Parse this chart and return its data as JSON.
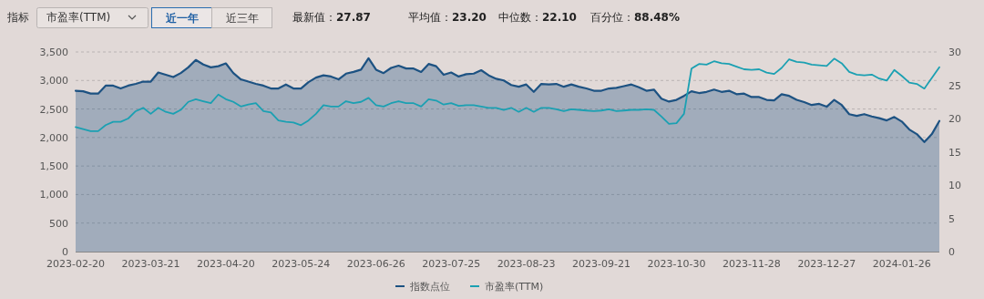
{
  "chart_data": [
    {
      "type": "other",
      "annotations": [
        "指标",
        "市盈率(TTM)",
        "近一年",
        "近三年",
        "最新值：",
        "27.87",
        "平均值：",
        "23.20",
        "中位数：",
        "22.10",
        "百分位：",
        "88.48%"
      ]
    },
    {
      "type": "area",
      "legend": "bottom",
      "grid": "y",
      "categories": [
        "2023-02-20",
        null,
        null,
        null,
        null,
        null,
        null,
        null,
        null,
        null,
        "2023-03-21",
        null,
        null,
        null,
        null,
        null,
        null,
        null,
        null,
        null,
        "2023-04-20",
        null,
        null,
        null,
        null,
        null,
        null,
        null,
        null,
        null,
        "2023-05-24",
        null,
        null,
        null,
        null,
        null,
        null,
        null,
        null,
        null,
        "2023-06-26",
        null,
        null,
        null,
        null,
        null,
        null,
        null,
        null,
        null,
        "2023-07-25",
        null,
        null,
        null,
        null,
        null,
        null,
        null,
        null,
        null,
        "2023-08-23",
        null,
        null,
        null,
        null,
        null,
        null,
        null,
        null,
        null,
        "2023-09-21",
        null,
        null,
        null,
        null,
        null,
        null,
        null,
        null,
        null,
        "2023-10-30",
        null,
        null,
        null,
        null,
        null,
        null,
        null,
        null,
        null,
        "2023-11-28",
        null,
        null,
        null,
        null,
        null,
        null,
        null,
        null,
        null,
        "2023-12-27",
        null,
        null,
        null,
        null,
        null,
        null,
        null,
        null,
        null,
        "2024-01-26",
        null,
        null,
        null,
        null,
        null
      ],
      "ylim": [
        0,
        3500
      ],
      "yticks": [
        0,
        500,
        {
          "value": 1000,
          "label": "1,000"
        },
        {
          "value": 1500,
          "label": "1,500"
        },
        {
          "value": 2000,
          "label": "2,000"
        },
        {
          "value": 2500,
          "label": "2,500"
        },
        {
          "value": 3000,
          "label": "3,000"
        },
        {
          "value": 3500,
          "label": "3,500"
        }
      ],
      "y2lim": [
        0,
        30
      ],
      "y2ticks": [
        0,
        5,
        10,
        15,
        20,
        25,
        30
      ],
      "series": [
        {
          "name": "指数点位",
          "type": "area",
          "color": "#1d5282",
          "values": [
            2820,
            2810,
            2770,
            2770,
            2910,
            2910,
            2860,
            2910,
            2940,
            2980,
            2980,
            3140,
            3100,
            3060,
            3130,
            3230,
            3360,
            3280,
            3230,
            3250,
            3300,
            3130,
            3020,
            2980,
            2940,
            2910,
            2860,
            2860,
            2930,
            2860,
            2860,
            2970,
            3050,
            3090,
            3070,
            3020,
            3120,
            3150,
            3190,
            3390,
            3190,
            3130,
            3220,
            3260,
            3210,
            3210,
            3150,
            3290,
            3250,
            3100,
            3140,
            3070,
            3110,
            3120,
            3180,
            3090,
            3030,
            3000,
            2920,
            2890,
            2930,
            2800,
            2940,
            2930,
            2940,
            2890,
            2930,
            2890,
            2860,
            2820,
            2820,
            2860,
            2870,
            2900,
            2930,
            2880,
            2820,
            2840,
            2680,
            2630,
            2660,
            2730,
            2810,
            2780,
            2800,
            2840,
            2800,
            2820,
            2760,
            2770,
            2710,
            2710,
            2660,
            2650,
            2760,
            2730,
            2660,
            2620,
            2570,
            2590,
            2540,
            2660,
            2570,
            2410,
            2380,
            2410,
            2370,
            2340,
            2300,
            2360,
            2280,
            2140,
            2060,
            1920,
            2060,
            2290
          ]
        },
        {
          "name": "市盈率(TTM)",
          "type": "line",
          "axis": "y2",
          "color": "#1ba0b2",
          "values": [
            18.7,
            18.4,
            18.1,
            18.1,
            19.0,
            19.5,
            19.5,
            20.0,
            21.1,
            21.6,
            20.7,
            21.6,
            21.0,
            20.7,
            21.3,
            22.5,
            22.9,
            22.6,
            22.3,
            23.6,
            22.9,
            22.5,
            21.8,
            22.1,
            22.3,
            21.1,
            20.9,
            19.7,
            19.5,
            19.4,
            19.0,
            19.7,
            20.7,
            22.0,
            21.8,
            21.8,
            22.6,
            22.3,
            22.5,
            23.1,
            22.0,
            21.8,
            22.3,
            22.6,
            22.3,
            22.3,
            21.8,
            22.9,
            22.7,
            22.1,
            22.3,
            21.9,
            22.0,
            22.0,
            21.8,
            21.6,
            21.6,
            21.3,
            21.6,
            21.0,
            21.6,
            21.0,
            21.6,
            21.6,
            21.4,
            21.1,
            21.4,
            21.3,
            21.2,
            21.1,
            21.2,
            21.4,
            21.1,
            21.2,
            21.3,
            21.3,
            21.4,
            21.3,
            20.3,
            19.2,
            19.3,
            20.7,
            27.5,
            28.2,
            28.1,
            28.6,
            28.3,
            28.2,
            27.8,
            27.4,
            27.3,
            27.4,
            26.9,
            26.7,
            27.6,
            28.9,
            28.5,
            28.4,
            28.1,
            28.0,
            27.9,
            29.0,
            28.3,
            27.0,
            26.6,
            26.5,
            26.6,
            26.0,
            25.7,
            27.3,
            26.4,
            25.4,
            25.2,
            24.5,
            26.1,
            27.7
          ]
        }
      ]
    }
  ]
}
